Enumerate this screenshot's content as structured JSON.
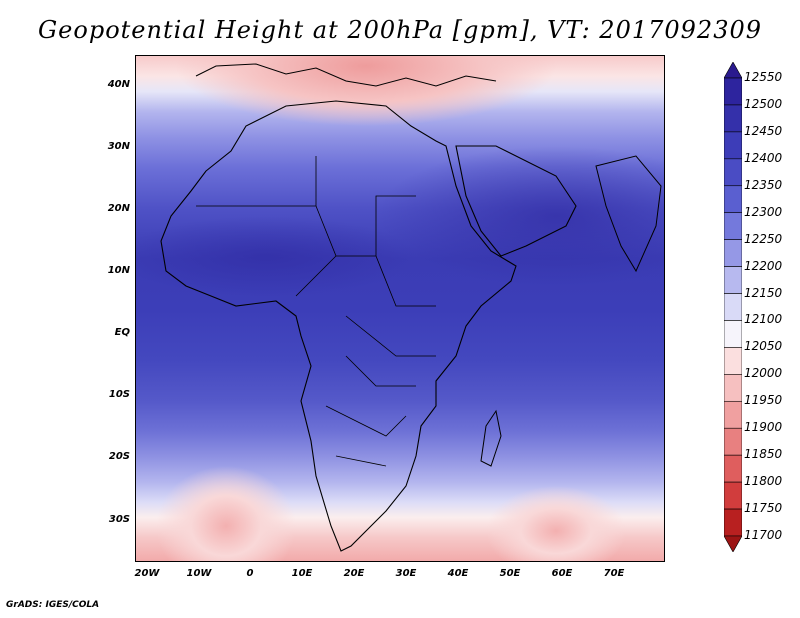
{
  "title": "Geopotential Height at 200hPa [gpm], VT: 2017092309",
  "footer": "GrADS: IGES/COLA",
  "map": {
    "lat_labels": [
      "40N",
      "30N",
      "20N",
      "10N",
      "EQ",
      "10S",
      "20S",
      "30S"
    ],
    "lon_labels": [
      "20W",
      "10W",
      "0",
      "10E",
      "20E",
      "30E",
      "40E",
      "50E",
      "60E",
      "70E"
    ]
  },
  "colorbar": {
    "labels": [
      "12550",
      "12500",
      "12450",
      "12400",
      "12350",
      "12300",
      "12250",
      "12200",
      "12150",
      "12100",
      "12050",
      "12000",
      "11950",
      "11900",
      "11850",
      "11800",
      "11750",
      "11700"
    ],
    "colors": [
      "#2a1a8e",
      "#2d249e",
      "#3430aa",
      "#3d3db8",
      "#4a4cc4",
      "#5a5fd0",
      "#7479dc",
      "#9598e6",
      "#b7b9ef",
      "#d9daf7",
      "#f6f4fb",
      "#fbdfdf",
      "#f6c0c0",
      "#f0a0a0",
      "#e88080",
      "#df5e5e",
      "#d13d3d",
      "#b82020",
      "#9c1414"
    ]
  }
}
